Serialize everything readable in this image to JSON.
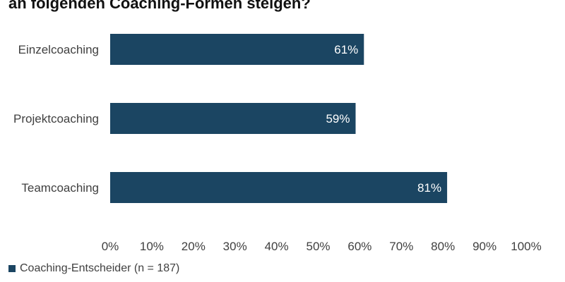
{
  "chart_data": {
    "type": "bar",
    "orientation": "horizontal",
    "title": "an folgenden Coaching-Formen steigen?",
    "categories": [
      "Einzelcoaching",
      "Projektcoaching",
      "Teamcoaching"
    ],
    "series": [
      {
        "name": "Coaching-Entscheider (n = 187)",
        "values": [
          61,
          59,
          81
        ],
        "data_labels": [
          "61%",
          "59%",
          "81%"
        ],
        "color": "#1b4562"
      }
    ],
    "xlim": [
      0,
      100
    ],
    "x_ticks": [
      "0%",
      "10%",
      "20%",
      "30%",
      "40%",
      "50%",
      "60%",
      "70%",
      "80%",
      "90%",
      "100%"
    ],
    "grid": false,
    "legend_position": "bottom-left",
    "value_label_color": "#ffffff",
    "text_color": "#404040"
  }
}
